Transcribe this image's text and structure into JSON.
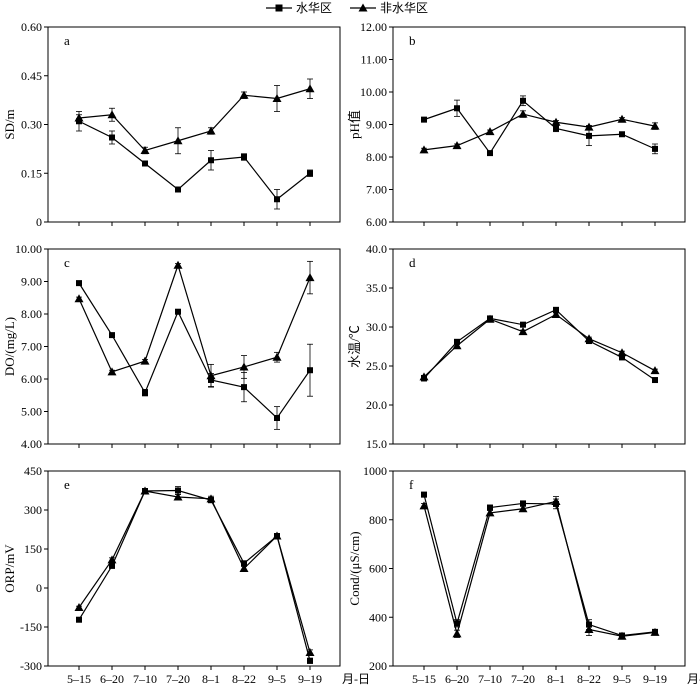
{
  "legend": {
    "items": [
      {
        "name": "水华区",
        "marker": "square"
      },
      {
        "name": "非水华区",
        "marker": "triangle"
      }
    ],
    "placement": "top-center"
  },
  "colors": {
    "ink": "#000000",
    "background": "#ffffff"
  },
  "x_axis": {
    "categories": [
      "5-15",
      "6-20",
      "7-10",
      "7-20",
      "8-1",
      "8-22",
      "9-5",
      "9-19"
    ],
    "unit_label": "月-日"
  },
  "chart_data": [
    {
      "id": "a",
      "panel_label": "a",
      "type": "line",
      "ylabel": "SD/m",
      "ylim": [
        0,
        0.6
      ],
      "yticks": [
        0,
        0.15,
        0.3,
        0.45,
        0.6
      ],
      "ytick_labels": [
        "0",
        "0.15",
        "0.30",
        "0.45",
        "0.60"
      ],
      "categories": [
        "5-15",
        "6-20",
        "7-10",
        "7-20",
        "8-1",
        "8-22",
        "9-5",
        "9-19"
      ],
      "series": [
        {
          "name": "水华区",
          "marker": "square",
          "values": [
            0.31,
            0.26,
            0.18,
            0.1,
            0.19,
            0.2,
            0.07,
            0.15
          ],
          "errors": [
            0.03,
            0.02,
            0.005,
            0.005,
            0.03,
            0.01,
            0.03,
            0.01
          ]
        },
        {
          "name": "非水华区",
          "marker": "triangle",
          "values": [
            0.32,
            0.33,
            0.22,
            0.25,
            0.28,
            0.39,
            0.38,
            0.41
          ],
          "errors": [
            0.01,
            0.02,
            0.01,
            0.04,
            0.01,
            0.01,
            0.04,
            0.03
          ]
        }
      ]
    },
    {
      "id": "b",
      "panel_label": "b",
      "type": "line",
      "ylabel": "pH值",
      "ylim": [
        6,
        12
      ],
      "yticks": [
        6,
        7,
        8,
        9,
        10,
        11,
        12
      ],
      "ytick_labels": [
        "6.00",
        "7.00",
        "8.00",
        "9.00",
        "10.00",
        "11.00",
        "12.00"
      ],
      "categories": [
        "5-15",
        "6-20",
        "7-10",
        "7-20",
        "8-1",
        "8-22",
        "9-5",
        "9-19"
      ],
      "series": [
        {
          "name": "水华区",
          "marker": "square",
          "values": [
            9.15,
            9.5,
            8.12,
            9.73,
            8.88,
            8.65,
            8.7,
            8.25
          ],
          "errors": [
            0.05,
            0.25,
            0.05,
            0.15,
            0.1,
            0.3,
            0.05,
            0.15
          ]
        },
        {
          "name": "非水华区",
          "marker": "triangle",
          "values": [
            8.22,
            8.35,
            8.78,
            9.32,
            9.07,
            8.92,
            9.16,
            8.95
          ],
          "errors": [
            0.05,
            0.05,
            0.05,
            0.1,
            0.05,
            0.05,
            0.05,
            0.1
          ]
        }
      ]
    },
    {
      "id": "c",
      "panel_label": "c",
      "type": "line",
      "ylabel": "DO/(mg/L)",
      "ylim": [
        4,
        10
      ],
      "yticks": [
        4,
        5,
        6,
        7,
        8,
        9,
        10
      ],
      "ytick_labels": [
        "4.00",
        "5.00",
        "6.00",
        "7.00",
        "8.00",
        "9.00",
        "10.00"
      ],
      "categories": [
        "5-15",
        "6-20",
        "7-10",
        "7-20",
        "8-1",
        "8-22",
        "9-5",
        "9-19"
      ],
      "series": [
        {
          "name": "水华区",
          "marker": "square",
          "values": [
            8.95,
            7.35,
            5.58,
            8.07,
            5.97,
            5.75,
            4.8,
            6.27
          ],
          "errors": [
            0.05,
            0.05,
            0.1,
            0.05,
            0.2,
            0.45,
            0.35,
            0.8
          ]
        },
        {
          "name": "非水华区",
          "marker": "triangle",
          "values": [
            8.47,
            6.22,
            6.55,
            9.5,
            6.1,
            6.37,
            6.67,
            9.12
          ],
          "errors": [
            0.05,
            0.05,
            0.05,
            0.05,
            0.35,
            0.35,
            0.15,
            0.5
          ]
        }
      ]
    },
    {
      "id": "d",
      "panel_label": "d",
      "type": "line",
      "ylabel": "水温/℃",
      "ylim": [
        15,
        40
      ],
      "yticks": [
        15,
        20,
        25,
        30,
        35,
        40
      ],
      "ytick_labels": [
        "15.0",
        "20.0",
        "25.0",
        "30.0",
        "35.0",
        "40.0"
      ],
      "categories": [
        "5-15",
        "6-20",
        "7-10",
        "7-20",
        "8-1",
        "8-22",
        "9-5",
        "9-19"
      ],
      "series": [
        {
          "name": "水华区",
          "marker": "square",
          "values": [
            23.4,
            28.1,
            31.1,
            30.3,
            32.2,
            28.2,
            26.1,
            23.2
          ],
          "errors": [
            0.2,
            0.2,
            0.2,
            0.2,
            0.2,
            0.2,
            0.2,
            0.2
          ]
        },
        {
          "name": "非水华区",
          "marker": "triangle",
          "values": [
            23.6,
            27.6,
            31.0,
            29.4,
            31.6,
            28.5,
            26.7,
            24.4
          ],
          "errors": [
            0.2,
            0.2,
            0.2,
            0.2,
            0.2,
            0.2,
            0.2,
            0.2
          ]
        }
      ]
    },
    {
      "id": "e",
      "panel_label": "e",
      "type": "line",
      "ylabel": "ORP/mV",
      "ylim": [
        -300,
        450
      ],
      "yticks": [
        -300,
        -150,
        0,
        150,
        300,
        450
      ],
      "ytick_labels": [
        "-300",
        "-150",
        "0",
        "150",
        "300",
        "450"
      ],
      "categories": [
        "5-15",
        "6-20",
        "7-10",
        "7-20",
        "8-1",
        "8-22",
        "9-5",
        "9-19"
      ],
      "series": [
        {
          "name": "水华区",
          "marker": "square",
          "values": [
            -122,
            85,
            373,
            375,
            338,
            95,
            200,
            -280
          ],
          "errors": [
            5,
            8,
            10,
            15,
            10,
            8,
            5,
            10
          ]
        },
        {
          "name": "非水华区",
          "marker": "triangle",
          "values": [
            -75,
            108,
            373,
            350,
            343,
            75,
            200,
            -248
          ],
          "errors": [
            5,
            8,
            10,
            10,
            10,
            8,
            5,
            10
          ]
        }
      ]
    },
    {
      "id": "f",
      "panel_label": "f",
      "type": "line",
      "ylabel": "Cond/(μS/cm)",
      "ylim": [
        200,
        1000
      ],
      "yticks": [
        200,
        400,
        600,
        800,
        1000
      ],
      "ytick_labels": [
        "200",
        "400",
        "600",
        "800",
        "1000"
      ],
      "categories": [
        "5-15",
        "6-20",
        "7-10",
        "7-20",
        "8-1",
        "8-22",
        "9-5",
        "9-19"
      ],
      "series": [
        {
          "name": "水华区",
          "marker": "square",
          "values": [
            903,
            375,
            850,
            867,
            865,
            370,
            325,
            340
          ],
          "errors": [
            10,
            15,
            10,
            10,
            20,
            20,
            8,
            10
          ]
        },
        {
          "name": "非水华区",
          "marker": "triangle",
          "values": [
            857,
            332,
            828,
            845,
            875,
            350,
            322,
            338
          ],
          "errors": [
            10,
            15,
            10,
            10,
            20,
            25,
            8,
            10
          ]
        }
      ]
    }
  ]
}
